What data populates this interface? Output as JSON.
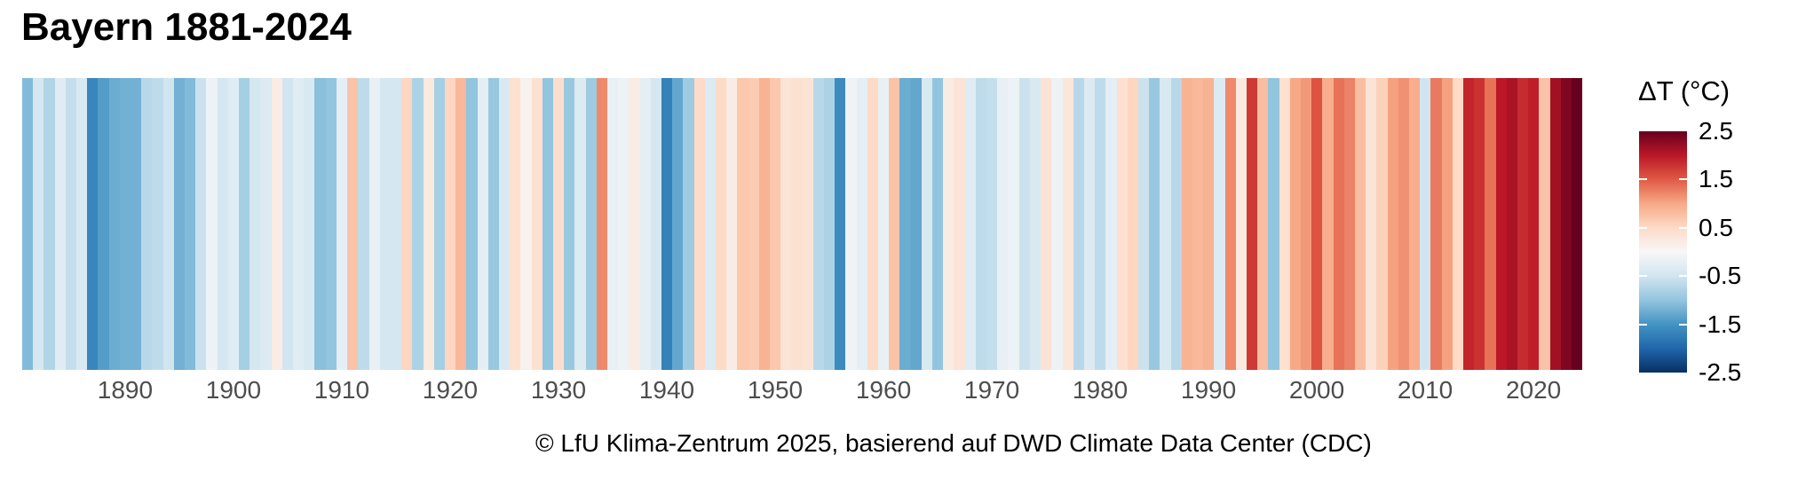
{
  "header": {
    "title": "Bayern 1881-2024"
  },
  "footer": {
    "credit": "© LfU Klima-Zentrum 2025, basierend auf DWD Climate Data Center (CDC)"
  },
  "legend": {
    "title": "ΔT (°C)",
    "tick_labels": [
      "2.5",
      "1.5",
      "0.5",
      "-0.5",
      "-1.5",
      "-2.5"
    ],
    "tick_values": [
      2.5,
      1.5,
      0.5,
      -0.5,
      -1.5,
      -2.5
    ]
  },
  "chart_data": {
    "type": "heatmap",
    "subtype": "warming-stripes",
    "title": "Bayern 1881-2024",
    "ylabel": "",
    "xlabel": "",
    "legend_title": "ΔT (°C)",
    "value_domain": [
      -2.5,
      2.5
    ],
    "start_year": 1881,
    "end_year": 2024,
    "x_tick_years": [
      1890,
      1900,
      1910,
      1920,
      1930,
      1940,
      1950,
      1960,
      1970,
      1980,
      1990,
      2000,
      2010,
      2020
    ],
    "anomalies_degC": [
      -1.1,
      -0.45,
      -0.75,
      -0.3,
      -0.6,
      -0.4,
      -1.65,
      -1.4,
      -1.25,
      -1.2,
      -1.2,
      -0.7,
      -0.65,
      -0.5,
      -1.2,
      -1.1,
      -0.55,
      -0.15,
      -0.45,
      -0.3,
      -0.85,
      -0.45,
      -0.35,
      0.2,
      -0.5,
      -0.3,
      -0.4,
      -1.05,
      -1.0,
      -0.25,
      0.75,
      -0.65,
      -0.2,
      -0.45,
      -0.45,
      0.55,
      -0.8,
      0.25,
      -0.85,
      0.55,
      0.85,
      -1.0,
      -0.25,
      -0.95,
      -0.4,
      0.4,
      0.1,
      0.4,
      -1.0,
      0.45,
      -0.95,
      -0.35,
      -0.9,
      1.2,
      -0.2,
      -0.15,
      0.2,
      -0.25,
      -0.45,
      -1.7,
      -1.3,
      -0.9,
      0.5,
      -0.35,
      0.5,
      0.2,
      0.7,
      0.65,
      0.9,
      0.7,
      0.35,
      0.4,
      0.35,
      -0.7,
      -0.8,
      -1.6,
      -0.1,
      -0.25,
      0.5,
      -0.2,
      0.75,
      -1.25,
      -1.3,
      -0.4,
      -1.0,
      0.2,
      0.35,
      -0.3,
      -0.65,
      -0.6,
      -0.2,
      -0.15,
      -0.55,
      -0.4,
      0.35,
      -0.15,
      0.3,
      -0.7,
      -0.35,
      -0.65,
      -0.25,
      0.4,
      0.55,
      -0.55,
      -0.95,
      -0.4,
      -0.7,
      0.9,
      0.85,
      0.9,
      -0.35,
      1.2,
      0.25,
      1.75,
      0.8,
      -1.0,
      0.4,
      1.0,
      1.1,
      1.55,
      0.95,
      1.35,
      1.25,
      0.8,
      0.35,
      0.6,
      1.05,
      1.15,
      0.95,
      -0.5,
      1.3,
      1.05,
      0.5,
      1.9,
      1.8,
      1.35,
      2.0,
      2.1,
      1.85,
      1.95,
      0.75,
      2.15,
      2.35,
      2.5
    ],
    "colormap": {
      "name": "RdBu-diverging",
      "stops": [
        {
          "t": 0.0,
          "color": "#053061"
        },
        {
          "t": 0.1,
          "color": "#2166ac"
        },
        {
          "t": 0.2,
          "color": "#4393c3"
        },
        {
          "t": 0.3,
          "color": "#92c5de"
        },
        {
          "t": 0.4,
          "color": "#d1e5f0"
        },
        {
          "t": 0.5,
          "color": "#f7f7f7"
        },
        {
          "t": 0.6,
          "color": "#fddbc7"
        },
        {
          "t": 0.7,
          "color": "#f7a987"
        },
        {
          "t": 0.8,
          "color": "#e05a44"
        },
        {
          "t": 0.9,
          "color": "#bb1726"
        },
        {
          "t": 1.0,
          "color": "#67001f"
        }
      ]
    }
  }
}
